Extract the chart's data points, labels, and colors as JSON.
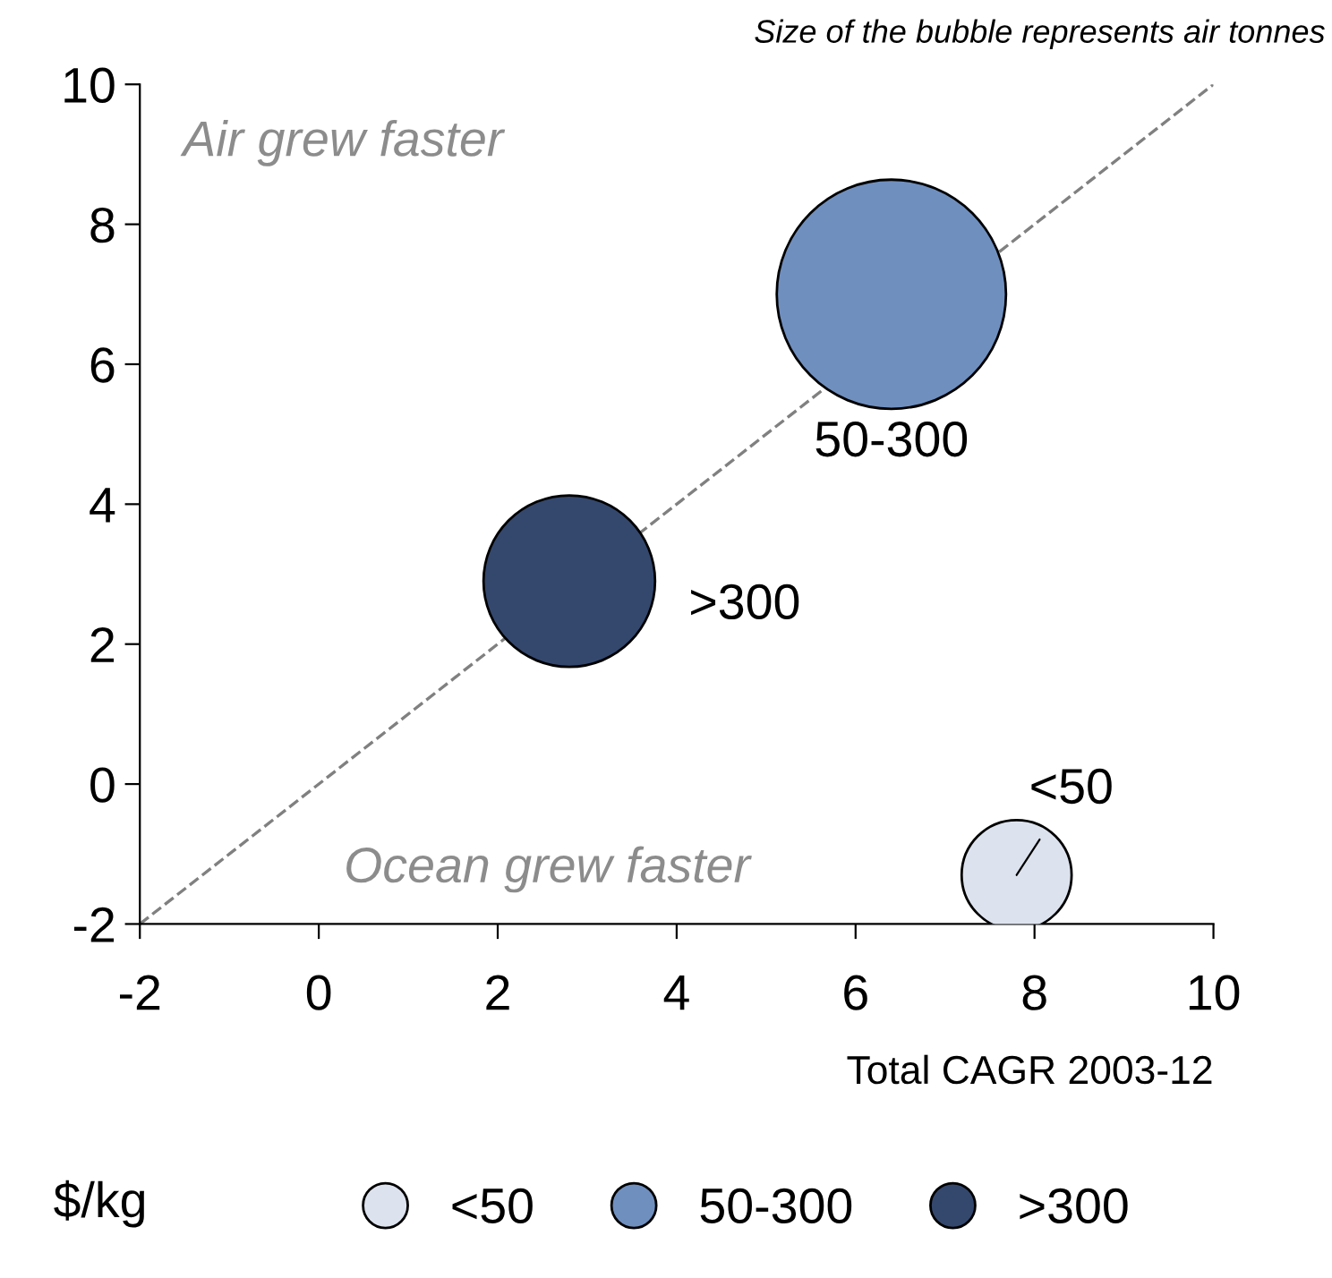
{
  "chart_data": {
    "type": "bubble",
    "xlabel": "Total CAGR 2003-12",
    "legend_title": "$/kg",
    "legend": "bottom",
    "annotations": [
      "Size of the bubble represents air tonnes",
      "Air grew faster",
      "Ocean grew faster"
    ],
    "xlim": [
      -2,
      10
    ],
    "ylim": [
      -2,
      10
    ],
    "xticks": [
      -2,
      0,
      2,
      4,
      6,
      8,
      10
    ],
    "yticks": [
      -2,
      0,
      2,
      4,
      6,
      8,
      10
    ],
    "grid": false,
    "series": [
      {
        "type": "line",
        "x": [
          -2,
          10
        ],
        "values": [
          -2,
          10
        ],
        "color": "#808080",
        "line_style": "dashed",
        "marker": "none"
      },
      {
        "name": "<50",
        "marker": "circle",
        "color": "#dde3ee",
        "x": [
          7.8
        ],
        "values": [
          -1.3
        ],
        "sizes": [
          0.23
        ]
      },
      {
        "name": "50-300",
        "marker": "circle",
        "color": "#6f8fbf",
        "x": [
          6.4
        ],
        "values": [
          7.0
        ],
        "sizes": [
          1
        ]
      },
      {
        "name": ">300",
        "marker": "circle",
        "color": "#34486e",
        "x": [
          2.8
        ],
        "values": [
          2.9
        ],
        "sizes": [
          0.56
        ]
      }
    ]
  }
}
